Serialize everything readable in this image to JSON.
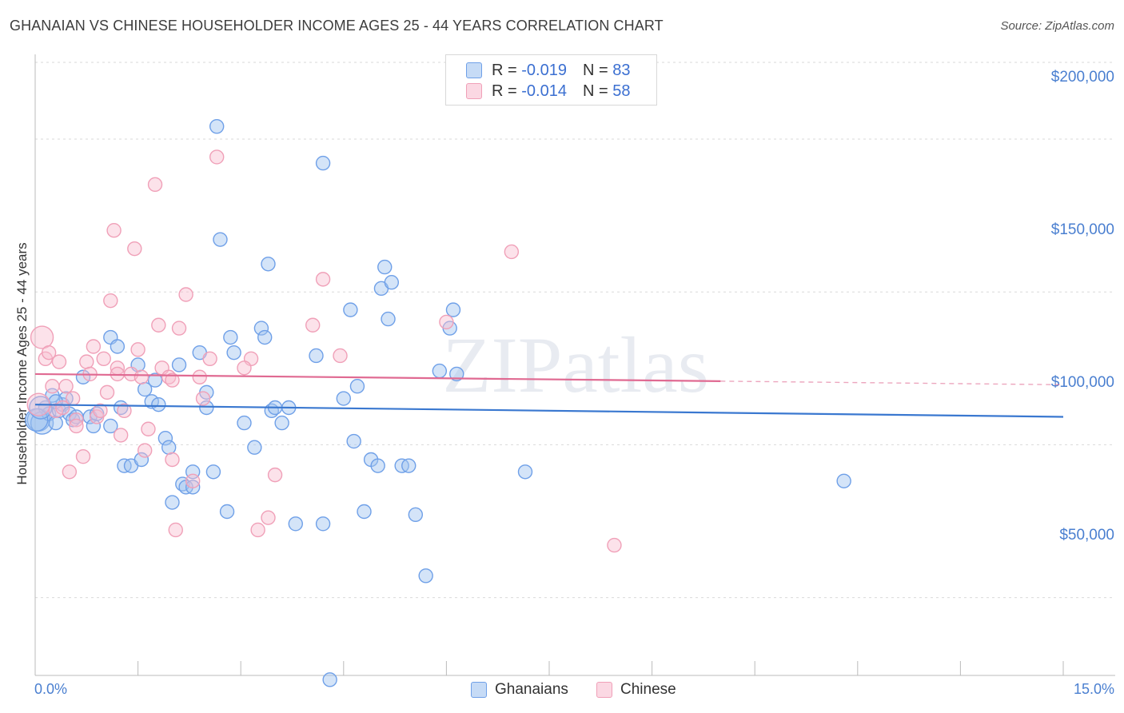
{
  "chart_data": {
    "type": "scatter",
    "title": "GHANAIAN VS CHINESE HOUSEHOLDER INCOME AGES 25 - 44 YEARS CORRELATION CHART",
    "source": "Source: ZipAtlas.com",
    "ylabel": "Householder Income Ages 25 - 44 years",
    "xlabel": "",
    "xlim": [
      0,
      15
    ],
    "ylim": [
      0,
      210000
    ],
    "x_tick_labels": [
      "0.0%",
      "15.0%"
    ],
    "y_ticks": [
      {
        "value": 200000,
        "label": "$200,000"
      },
      {
        "value": 150000,
        "label": "$150,000"
      },
      {
        "value": 100000,
        "label": "$100,000"
      },
      {
        "value": 50000,
        "label": "$50,000"
      }
    ],
    "watermark": "ZIPatlas",
    "legend_stats": [
      {
        "r_label": "R = ",
        "r_value": "-0.019",
        "n_label": "N = ",
        "n_value": "83"
      },
      {
        "r_label": "R = ",
        "r_value": "-0.014",
        "n_label": "N = ",
        "n_value": "58"
      }
    ],
    "series": [
      {
        "name": "Ghanaians",
        "color": "#6fa0e8",
        "fill": "rgba(160,195,240,0.45)",
        "line_color": "#3a78d0",
        "trend": {
          "x0": 0.0,
          "y0": 93000,
          "x1": 15.0,
          "y1": 89000
        },
        "points": [
          [
            0.05,
            88000
          ],
          [
            0.1,
            87000
          ],
          [
            0.15,
            92000
          ],
          [
            0.2,
            90000
          ],
          [
            0.25,
            96000
          ],
          [
            0.3,
            87000
          ],
          [
            0.35,
            91000
          ],
          [
            0.4,
            93000
          ],
          [
            0.45,
            95000
          ],
          [
            0.5,
            90000
          ],
          [
            0.55,
            88000
          ],
          [
            0.6,
            89000
          ],
          [
            0.7,
            102000
          ],
          [
            0.8,
            89000
          ],
          [
            0.85,
            86000
          ],
          [
            0.9,
            90000
          ],
          [
            1.1,
            115000
          ],
          [
            1.2,
            112000
          ],
          [
            1.1,
            86000
          ],
          [
            1.25,
            92000
          ],
          [
            1.3,
            73000
          ],
          [
            1.4,
            73000
          ],
          [
            1.5,
            106000
          ],
          [
            1.55,
            75000
          ],
          [
            1.6,
            98000
          ],
          [
            1.7,
            94000
          ],
          [
            1.75,
            101000
          ],
          [
            1.9,
            82000
          ],
          [
            1.95,
            79000
          ],
          [
            2.0,
            61000
          ],
          [
            2.1,
            106000
          ],
          [
            2.15,
            67000
          ],
          [
            2.2,
            66000
          ],
          [
            2.3,
            71000
          ],
          [
            2.3,
            66000
          ],
          [
            2.4,
            110000
          ],
          [
            2.5,
            92000
          ],
          [
            2.5,
            97000
          ],
          [
            2.6,
            71000
          ],
          [
            2.7,
            147000
          ],
          [
            2.65,
            184000
          ],
          [
            2.8,
            58000
          ],
          [
            2.85,
            115000
          ],
          [
            2.9,
            110000
          ],
          [
            3.05,
            87000
          ],
          [
            3.2,
            79000
          ],
          [
            3.3,
            118000
          ],
          [
            3.35,
            115000
          ],
          [
            3.4,
            139000
          ],
          [
            3.45,
            91000
          ],
          [
            3.5,
            92000
          ],
          [
            3.6,
            87000
          ],
          [
            3.7,
            92000
          ],
          [
            3.8,
            54000
          ],
          [
            4.1,
            109000
          ],
          [
            4.2,
            54000
          ],
          [
            4.2,
            172000
          ],
          [
            4.3,
            3000
          ],
          [
            4.5,
            95000
          ],
          [
            4.6,
            124000
          ],
          [
            4.65,
            81000
          ],
          [
            4.7,
            99000
          ],
          [
            4.8,
            58000
          ],
          [
            4.9,
            75000
          ],
          [
            5.0,
            73000
          ],
          [
            5.05,
            131000
          ],
          [
            5.1,
            138000
          ],
          [
            5.15,
            121000
          ],
          [
            5.2,
            133000
          ],
          [
            5.35,
            73000
          ],
          [
            5.45,
            73000
          ],
          [
            5.55,
            57000
          ],
          [
            5.7,
            37000
          ],
          [
            5.9,
            104000
          ],
          [
            6.05,
            118000
          ],
          [
            6.1,
            124000
          ],
          [
            6.15,
            103000
          ],
          [
            7.15,
            71000
          ],
          [
            11.8,
            68000
          ],
          [
            0.02,
            88000
          ],
          [
            0.08,
            92000
          ],
          [
            0.3,
            94000
          ],
          [
            1.8,
            93000
          ]
        ]
      },
      {
        "name": "Chinese",
        "color": "#f0a0b8",
        "fill": "rgba(248,190,208,0.45)",
        "line_color": "#e06a92",
        "trend": {
          "x0": 0.0,
          "y0": 103000,
          "x1": 15.0,
          "y1": 99500
        },
        "trend_solid_until": 10.0,
        "points": [
          [
            0.05,
            93000
          ],
          [
            0.1,
            115000
          ],
          [
            0.15,
            108000
          ],
          [
            0.2,
            110000
          ],
          [
            0.25,
            99000
          ],
          [
            0.3,
            91000
          ],
          [
            0.35,
            107000
          ],
          [
            0.4,
            92000
          ],
          [
            0.45,
            99000
          ],
          [
            0.5,
            71000
          ],
          [
            0.55,
            95000
          ],
          [
            0.6,
            88000
          ],
          [
            0.7,
            76000
          ],
          [
            0.75,
            107000
          ],
          [
            0.8,
            103000
          ],
          [
            0.85,
            112000
          ],
          [
            0.9,
            89000
          ],
          [
            0.95,
            91000
          ],
          [
            1.0,
            108000
          ],
          [
            1.05,
            97000
          ],
          [
            1.1,
            127000
          ],
          [
            1.15,
            150000
          ],
          [
            1.2,
            105000
          ],
          [
            1.25,
            83000
          ],
          [
            1.3,
            91000
          ],
          [
            1.4,
            103000
          ],
          [
            1.45,
            144000
          ],
          [
            1.5,
            111000
          ],
          [
            1.55,
            102000
          ],
          [
            1.6,
            78000
          ],
          [
            1.65,
            85000
          ],
          [
            1.75,
            165000
          ],
          [
            1.8,
            119000
          ],
          [
            1.85,
            105000
          ],
          [
            1.95,
            102000
          ],
          [
            2.0,
            75000
          ],
          [
            2.05,
            52000
          ],
          [
            2.1,
            118000
          ],
          [
            2.2,
            129000
          ],
          [
            2.3,
            68000
          ],
          [
            2.4,
            102000
          ],
          [
            2.45,
            95000
          ],
          [
            2.55,
            108000
          ],
          [
            2.65,
            174000
          ],
          [
            3.15,
            108000
          ],
          [
            3.25,
            52000
          ],
          [
            3.4,
            56000
          ],
          [
            3.5,
            70000
          ],
          [
            4.05,
            119000
          ],
          [
            4.2,
            134000
          ],
          [
            4.45,
            109000
          ],
          [
            6.0,
            120000
          ],
          [
            6.95,
            143000
          ],
          [
            8.45,
            47000
          ],
          [
            1.2,
            103000
          ],
          [
            0.6,
            86000
          ],
          [
            2.0,
            101000
          ],
          [
            3.05,
            105000
          ]
        ]
      }
    ]
  }
}
